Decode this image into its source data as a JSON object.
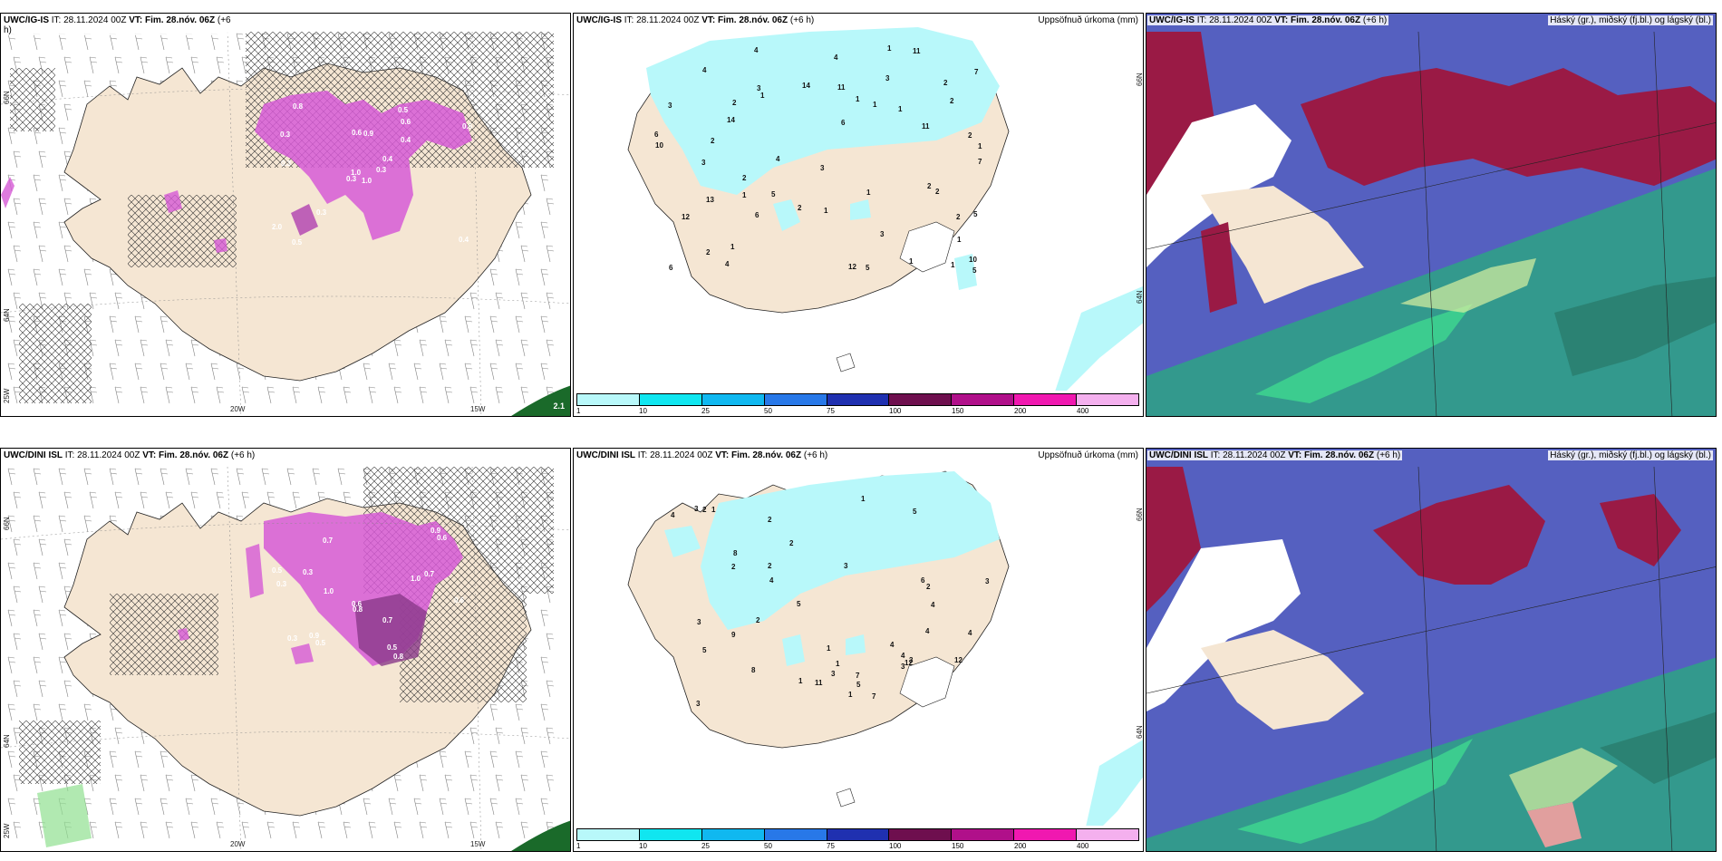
{
  "panels": [
    {
      "id": "ig-surface",
      "model": "UWC/IG-IS",
      "it_label": "IT:",
      "it": "28.11.2024 00Z",
      "vt_label": "VT:",
      "vt": "Fim. 28.nóv. 06Z",
      "lead": "(+6",
      "lead_wrap": "h)",
      "lon_labels": [
        "20W",
        "15W"
      ],
      "lat_labels": [
        "66N",
        "64N",
        "25W"
      ],
      "badge": "2.1",
      "precip_values": [
        "1.0",
        "0.3",
        "1.0",
        "2.0",
        "0.4",
        "0.3",
        "0.5",
        "0.9",
        "0.6",
        "0.3",
        "0.8",
        "0.4",
        "0.3",
        "0.6",
        "0.3",
        "0.4",
        "0.5",
        "0.6"
      ]
    },
    {
      "id": "ig-precip",
      "model": "UWC/IG-IS",
      "it_label": "IT:",
      "it": "28.11.2024 00Z",
      "vt_label": "VT:",
      "vt": "Fim. 28.nóv. 06Z",
      "lead": "(+6 h)",
      "right_title": "Uppsöfnuð úrkoma (mm)",
      "lat_labels": [
        "66N",
        "64N"
      ],
      "values": [
        "1",
        "2",
        "1",
        "1",
        "4",
        "5",
        "5",
        "1",
        "2",
        "2",
        "14",
        "2",
        "11",
        "6",
        "12",
        "3",
        "2",
        "6",
        "4",
        "14",
        "10",
        "11",
        "2",
        "13",
        "6",
        "11",
        "6",
        "3",
        "12",
        "7",
        "4",
        "5",
        "3",
        "4",
        "2",
        "10",
        "7",
        "1",
        "2",
        "2",
        "5",
        "3",
        "2",
        "1",
        "1",
        "4",
        "1",
        "1",
        "3",
        "1",
        "1",
        "2",
        "1",
        "3",
        "1"
      ]
    },
    {
      "id": "ig-cloud",
      "model": "UWC/IG-IS",
      "it_label": "IT:",
      "it": "28.11.2024 00Z",
      "vt_label": "VT:",
      "vt": "Fim. 28.nóv. 06Z",
      "lead": "(+6 h)",
      "right_title": "Háský (gr.), miðský (fj.bl.) og lágský (bl.)"
    },
    {
      "id": "dini-surface",
      "model": "UWC/DINI ISL",
      "it_label": "IT:",
      "it": "28.11.2024 00Z",
      "vt_label": "VT:",
      "vt": "Fim. 28.nóv. 06Z",
      "lead": "(+6 h)",
      "lon_labels": [
        "20W",
        "15W"
      ],
      "lat_labels": [
        "66N",
        "64N",
        "25W"
      ],
      "precip_values": [
        "0.8",
        "0.7",
        "0.9",
        "0.3",
        "0.7",
        "0.5",
        "0.6",
        "1.0",
        "0.8",
        "0.5",
        "0.3",
        "0.5",
        "0.6",
        "0.7",
        "1.0",
        "0.9",
        "0.3",
        "0.6"
      ]
    },
    {
      "id": "dini-precip",
      "model": "UWC/DINI ISL",
      "it_label": "IT:",
      "it": "28.11.2024 00Z",
      "vt_label": "VT:",
      "vt": "Fim. 28.nóv. 06Z",
      "lead": "(+6 h)",
      "right_title": "Uppsöfnuð úrkoma (mm)",
      "lat_labels": [
        "66N",
        "64N"
      ],
      "values": [
        "1",
        "1",
        "3",
        "4",
        "3",
        "5",
        "3",
        "3",
        "6",
        "8",
        "9",
        "12",
        "11",
        "7",
        "5",
        "5",
        "4",
        "12",
        "4",
        "2",
        "1",
        "4",
        "2",
        "4",
        "7",
        "8",
        "1",
        "1",
        "2",
        "2",
        "3",
        "4",
        "4",
        "1",
        "3",
        "2",
        "2",
        "3",
        "5",
        "2",
        "3"
      ]
    },
    {
      "id": "dini-cloud",
      "model": "UWC/DINI ISL",
      "it_label": "IT:",
      "it": "28.11.2024 00Z",
      "vt_label": "VT:",
      "vt": "Fim. 28.nóv. 06Z",
      "lead": "(+6 h)",
      "right_title": "Háský (gr.), miðský (fj.bl.) og lágský (bl.)"
    }
  ],
  "precip_legend": {
    "colors": [
      "#b8f8fa",
      "#10e6f0",
      "#10b8f0",
      "#2878e8",
      "#1f30b0",
      "#6e0f4e",
      "#b0108a",
      "#f018b0",
      "#f4b0ee"
    ],
    "ticks": [
      "1",
      "10",
      "25",
      "50",
      "75",
      "100",
      "150",
      "200",
      "400"
    ]
  },
  "colors": {
    "land": "#f5e6d3",
    "precip_light": "#b8f8fa",
    "precip_magenta": "#d65ad6",
    "high_cloud": "#9a1a45",
    "mid_cloud": "#5560c0",
    "low_cloud": "#2aa880"
  }
}
